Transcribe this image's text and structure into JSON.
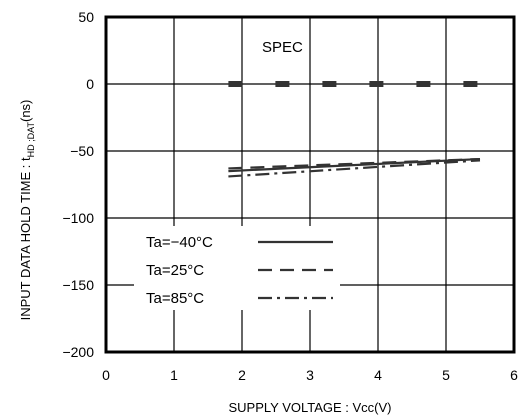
{
  "chart_data": {
    "type": "line",
    "title": "",
    "xlabel": "SUPPLY VOLTAGE : Vcc(V)",
    "ylabel": "INPUT DATA HOLD TIME : t",
    "ylabel_subscript": "HD ;DAT",
    "ylabel_unit": "(ns)",
    "xlim": [
      0,
      6
    ],
    "ylim": [
      -200,
      50
    ],
    "x_ticks": [
      0,
      1,
      2,
      3,
      4,
      5,
      6
    ],
    "x_tick_labels": [
      "0",
      "1",
      "2",
      "3",
      "4",
      "5",
      "6"
    ],
    "y_ticks": [
      50,
      0,
      -50,
      -100,
      -150,
      -200
    ],
    "y_tick_labels": [
      "50",
      "0",
      "−50",
      "−100",
      "−150",
      "−200"
    ],
    "grid": true,
    "legend_position": "lower-left",
    "series": [
      {
        "name": "Ta=−40°C",
        "style": "solid",
        "color": "#333333",
        "x": [
          1.8,
          5.5
        ],
        "y": [
          -65,
          -56
        ]
      },
      {
        "name": "Ta=25°C",
        "style": "dashed",
        "color": "#333333",
        "x": [
          1.8,
          5.5
        ],
        "y": [
          -63,
          -56
        ]
      },
      {
        "name": "Ta=85°C",
        "style": "dashdot",
        "color": "#333333",
        "x": [
          1.8,
          5.5
        ],
        "y": [
          -69,
          -57
        ]
      }
    ],
    "spec": {
      "label": "SPEC",
      "value": 0,
      "x": [
        1.8,
        5.5
      ],
      "style": "thick-dashed",
      "color": "#333333"
    }
  }
}
